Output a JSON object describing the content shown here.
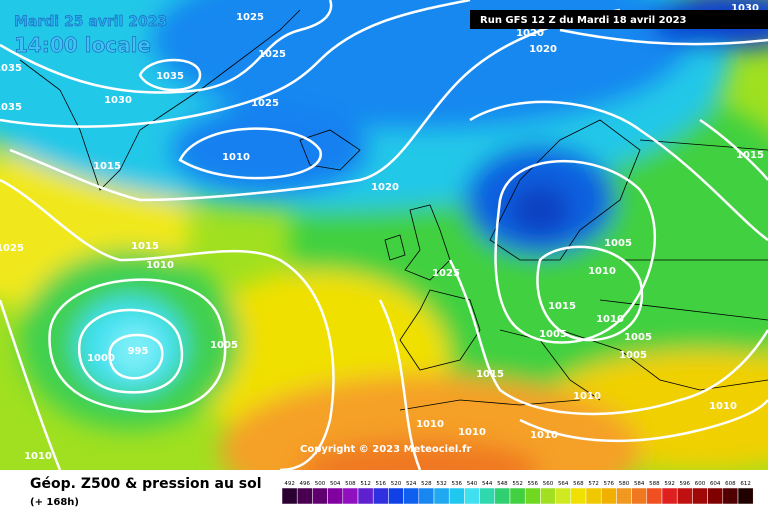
{
  "header": {
    "date": "Mardi 25 avril 2023",
    "time": "14:00 locale",
    "run": "Run GFS 12 Z du Mardi 18 avril 2023"
  },
  "isobar_labels": [
    1025,
    1030,
    1020,
    1020,
    1035,
    1035,
    1025,
    1030,
    1025,
    1035,
    1010,
    1015,
    1015,
    1020,
    1025,
    1015,
    1010,
    1005,
    1010,
    1025,
    1015,
    1010,
    1005,
    1005,
    1005,
    1000,
    995,
    1005,
    1015,
    1010,
    1010,
    1010,
    1010,
    1010,
    1010
  ],
  "copyright": "Copyright © 2023 Meteociel.fr",
  "legend": {
    "title": "Géop. Z500 & pression au sol",
    "lead_time": "(+ 168h)",
    "scale": [
      {
        "value": 492,
        "color": "#2a0030"
      },
      {
        "value": 496,
        "color": "#4a0050"
      },
      {
        "value": 500,
        "color": "#600070"
      },
      {
        "value": 504,
        "color": "#8000a0"
      },
      {
        "value": 508,
        "color": "#9010c0"
      },
      {
        "value": 512,
        "color": "#6020d0"
      },
      {
        "value": 516,
        "color": "#3030e0"
      },
      {
        "value": 520,
        "color": "#1040e8"
      },
      {
        "value": 524,
        "color": "#1060f0"
      },
      {
        "value": 528,
        "color": "#1888f0"
      },
      {
        "value": 532,
        "color": "#20a8f0"
      },
      {
        "value": 536,
        "color": "#20c8f0"
      },
      {
        "value": 540,
        "color": "#40e0f0"
      },
      {
        "value": 544,
        "color": "#30d8b0"
      },
      {
        "value": 548,
        "color": "#30d070"
      },
      {
        "value": 552,
        "color": "#40d040"
      },
      {
        "value": 556,
        "color": "#70d820"
      },
      {
        "value": 560,
        "color": "#a0e020"
      },
      {
        "value": 564,
        "color": "#d0e820"
      },
      {
        "value": 568,
        "color": "#f0e000"
      },
      {
        "value": 572,
        "color": "#f0c800"
      },
      {
        "value": 576,
        "color": "#f0b000"
      },
      {
        "value": 580,
        "color": "#f09820"
      },
      {
        "value": 584,
        "color": "#f07820"
      },
      {
        "value": 588,
        "color": "#f05020"
      },
      {
        "value": 592,
        "color": "#e02020"
      },
      {
        "value": 596,
        "color": "#c01010"
      },
      {
        "value": 600,
        "color": "#a00808"
      },
      {
        "value": 604,
        "color": "#800000"
      },
      {
        "value": 608,
        "color": "#500000"
      },
      {
        "value": 612,
        "color": "#200000"
      }
    ]
  }
}
